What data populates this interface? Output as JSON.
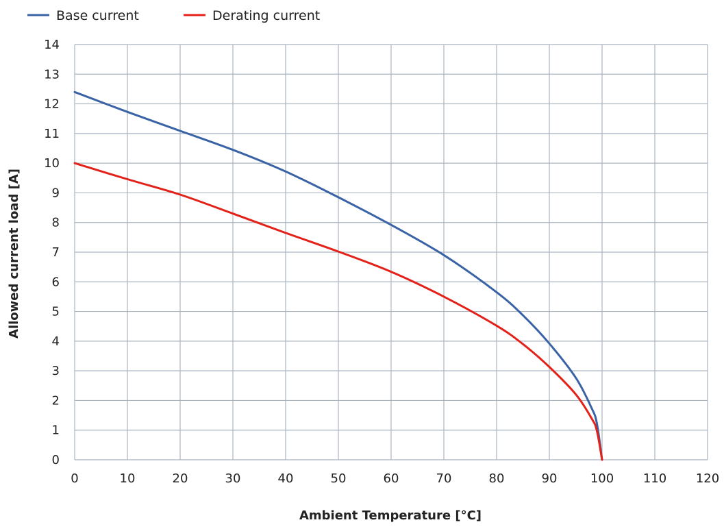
{
  "chart_data": {
    "type": "line",
    "title": "",
    "xlabel": "Ambient Temperature [°C]",
    "ylabel": "Allowed current load [A]",
    "xlim": [
      0,
      120
    ],
    "ylim": [
      0,
      14
    ],
    "xticks": [
      0,
      10,
      20,
      30,
      40,
      50,
      60,
      70,
      80,
      90,
      100,
      110,
      120
    ],
    "yticks": [
      0,
      1,
      2,
      3,
      4,
      5,
      6,
      7,
      8,
      9,
      10,
      11,
      12,
      13,
      14
    ],
    "grid": true,
    "legend_position": "top-left",
    "series": [
      {
        "name": "Base current",
        "color": "#3a63a6",
        "x": [
          0,
          10,
          20,
          30,
          40,
          50,
          60,
          70,
          80,
          85,
          90,
          95,
          98,
          99,
          100
        ],
        "y": [
          12.4,
          11.73,
          11.09,
          10.45,
          9.72,
          8.85,
          7.92,
          6.9,
          5.65,
          4.87,
          3.92,
          2.77,
          1.75,
          1.24,
          0
        ]
      },
      {
        "name": "Derating current",
        "color": "#e32119",
        "x": [
          0,
          10,
          20,
          30,
          40,
          50,
          60,
          70,
          80,
          85,
          90,
          95,
          98,
          99,
          100
        ],
        "y": [
          10.0,
          9.46,
          8.94,
          8.3,
          7.65,
          7.02,
          6.34,
          5.5,
          4.52,
          3.9,
          3.13,
          2.21,
          1.4,
          0.99,
          0
        ]
      }
    ]
  }
}
